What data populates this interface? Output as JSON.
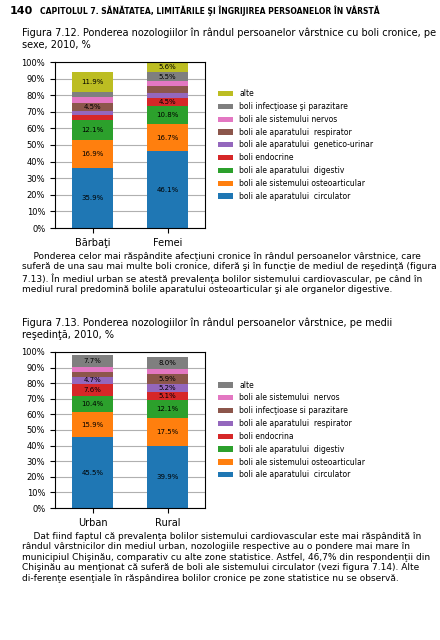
{
  "chart_data": [
    {
      "type": "bar",
      "stacked": true,
      "data_labels": true,
      "grid": true,
      "legend": "center left",
      "title": "Figura 7.12. Ponderea nozologiilor în rândul persoanelor vârstnice cu boli cronice, pe sexe, 2010, %",
      "annotations": [
        "140",
        "CAPITOLUL 7. SĂNĂTATEA, LIMITĂRILE ŞI ÎNGRIJIREA PERSOANELOR ÎN VÂRSTĂ",
        "    Ponderea celor mai răspândite afecţiuni cronice în rândul persoanelor vârstnice, care suferă de una sau mai multe boli cronice, diferă şi în funcţie de mediul de reşedinţă (figura 7.13). În mediul urban se atestă prevalenţa bolilor sistemului cardiovascular, pe când în mediul rural predomină bolile aparatului osteoarticular şi ale organelor digestive."
      ],
      "categories": [
        "Bărbaţi",
        "Femei"
      ],
      "series": [
        {
          "name": "boli ale aparatului  circulator",
          "values": [
            35.9,
            46.1
          ],
          "value_labels": [
            "35.9%",
            "46.1%"
          ]
        },
        {
          "name": "boli ale sistemului osteoarticular",
          "values": [
            16.9,
            16.7
          ],
          "value_labels": [
            "16.9%",
            "16.7%"
          ]
        },
        {
          "name": "boli ale aparatului  digestiv",
          "values": [
            12.1,
            10.8
          ],
          "value_labels": [
            "12.1%",
            "10.8%"
          ]
        },
        {
          "name": "boli endocrine",
          "values": [
            3.0,
            4.5
          ],
          "value_labels": [
            null,
            "4.5%"
          ]
        },
        {
          "name": "boli ale aparatului  genetico-urinar",
          "values": [
            2.8,
            3.5
          ],
          "value_labels": [
            null,
            null
          ]
        },
        {
          "name": "boli ale aparatului  respirator",
          "values": [
            4.5,
            3.8
          ],
          "value_labels": [
            "4.5%",
            null
          ]
        },
        {
          "name": "boli ale sistemului nervos",
          "values": [
            3.5,
            3.0
          ],
          "value_labels": [
            null,
            null
          ]
        },
        {
          "name": "boli infecţioase şi parazitare",
          "values": [
            3.4,
            5.5
          ],
          "value_labels": [
            null,
            "5.5%"
          ]
        },
        {
          "name": "alte",
          "values": [
            11.9,
            5.6
          ],
          "value_labels": [
            "11.9%",
            "5.6%"
          ]
        }
      ],
      "ylim": [
        0,
        100
      ],
      "yticks": [
        {
          "value": 0,
          "label": "0%"
        },
        {
          "value": 10,
          "label": "10%"
        },
        {
          "value": 20,
          "label": "20%"
        },
        {
          "value": 30,
          "label": "30%"
        },
        {
          "value": 40,
          "label": "40%"
        },
        {
          "value": 50,
          "label": "50%"
        },
        {
          "value": 60,
          "label": "60%"
        },
        {
          "value": 70,
          "label": "70%"
        },
        {
          "value": 80,
          "label": "80%"
        },
        {
          "value": 90,
          "label": "90%"
        },
        {
          "value": 100,
          "label": "100%"
        }
      ]
    },
    {
      "type": "bar",
      "stacked": true,
      "data_labels": true,
      "grid": true,
      "legend": "center left",
      "title": "Figura 7.13. Ponderea nozologiilor în rândul persoanelor vârstnice, pe medii reşedinţă, 2010, %",
      "annotations": [
        "    Dat fiind faptul că prevalenţa bolilor sistemului cardiovascular este mai răspândită în rândul vârstnicilor din mediul urban, nozologiile respective au o pondere mai mare în municipiul Chişinău, comparativ cu alte zone statistice. Astfel, 46,7% din respondenţii din Chişinău au menţionat că suferă de boli ale sistemului circulator (vezi figura 7.14). Alte di-ferenţe esenţiale în răspândirea bolilor cronice pe zone statistice nu se observă."
      ],
      "categories": [
        "Urban",
        "Rural"
      ],
      "series": [
        {
          "name": "boli ale aparatului  circulator",
          "values": [
            45.5,
            39.9
          ],
          "value_labels": [
            "45.5%",
            "39.9%"
          ]
        },
        {
          "name": "boli ale sistemului osteoarticular",
          "values": [
            15.9,
            17.5
          ],
          "value_labels": [
            "15.9%",
            "17.5%"
          ]
        },
        {
          "name": "boli ale aparatului  digestiv",
          "values": [
            10.4,
            12.1
          ],
          "value_labels": [
            "10.4%",
            "12.1%"
          ]
        },
        {
          "name": "boli endocrina",
          "values": [
            7.6,
            5.1
          ],
          "value_labels": [
            "7.6%",
            "5.1%"
          ]
        },
        {
          "name": "boli ale aparatului  respirator",
          "values": [
            4.7,
            5.2
          ],
          "value_labels": [
            "4.7%",
            "5.2%"
          ]
        },
        {
          "name": "boli infecţioase si parazitare",
          "values": [
            2.8,
            5.9
          ],
          "value_labels": [
            null,
            "5.9%"
          ]
        },
        {
          "name": "boli ale sistemului  nervos",
          "values": [
            3.2,
            3.3
          ],
          "value_labels": [
            null,
            null
          ]
        },
        {
          "name": "alte",
          "values": [
            7.7,
            8.0
          ],
          "value_labels": [
            "7.7%",
            "8.0%"
          ]
        }
      ],
      "ylim": [
        0,
        100
      ],
      "yticks": [
        {
          "value": 0,
          "label": "0%"
        },
        {
          "value": 10,
          "label": "10%"
        },
        {
          "value": 20,
          "label": "20%"
        },
        {
          "value": 30,
          "label": "30%"
        },
        {
          "value": 40,
          "label": "40%"
        },
        {
          "value": 50,
          "label": "50%"
        },
        {
          "value": 60,
          "label": "60%"
        },
        {
          "value": 70,
          "label": "70%"
        },
        {
          "value": 80,
          "label": "80%"
        },
        {
          "value": 90,
          "label": "90%"
        },
        {
          "value": 100,
          "label": "100%"
        }
      ]
    }
  ]
}
